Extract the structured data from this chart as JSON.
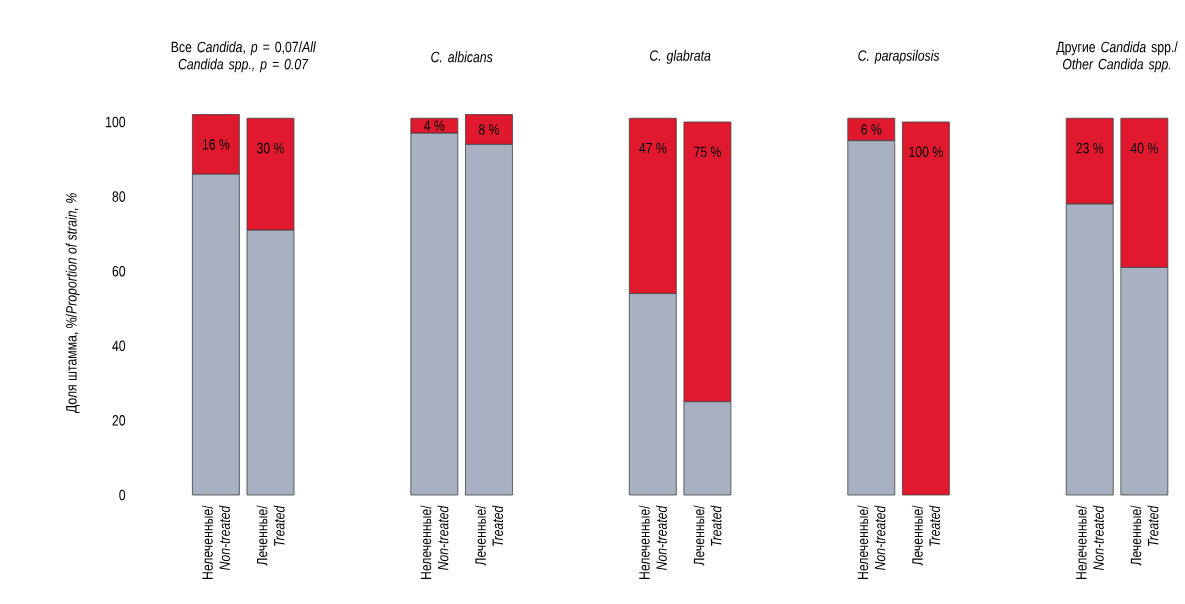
{
  "chart_data": {
    "type": "bar",
    "stacked": true,
    "ylabel": "Доля штамма, %/*Proportion of strain, %*",
    "categories": [
      "Нелеченные/ *Non-treated*",
      "Леченные/ *Treated*",
      null,
      null,
      "Нелеченные/ *Non-treated*",
      "Леченные/ *Treated*",
      null,
      null,
      "Нелеченные/ *Non-treated*",
      "Леченные/ *Treated*",
      null,
      null,
      "Нелеченные/ *Non-treated*",
      "Леченные/ *Treated*",
      null,
      null,
      "Нелеченные/ *Non-treated*",
      "Леченные/ *Treated*"
    ],
    "series": [
      {
        "color": "#a8b1c2",
        "values": [
          86,
          71,
          null,
          null,
          97,
          94,
          null,
          null,
          54,
          25,
          null,
          null,
          95,
          0,
          null,
          null,
          78,
          61
        ]
      },
      {
        "color": "#e0192f",
        "values": [
          16,
          30,
          null,
          null,
          4,
          8,
          null,
          null,
          47,
          75,
          null,
          null,
          6,
          100,
          null,
          null,
          23,
          40
        ],
        "value_labels": [
          "16 %",
          "30 %",
          null,
          null,
          "4 %",
          "8 %",
          null,
          null,
          "47 %",
          "75 %",
          null,
          null,
          "6 %",
          "100 %",
          null,
          null,
          "23 %",
          "40 %"
        ]
      }
    ],
    "ylim": [
      0,
      103
    ],
    "yticks": [
      0,
      20,
      40,
      60,
      80,
      100
    ],
    "annotations": [
      "Все *Candida*, *p* = 0,07/*All Candida spp., p = 0.07*",
      "*C. albicans*",
      "*C. glabrata*",
      "*C. parapsilosis*",
      "Другие *Candida* spp./ *Other Candida spp.*"
    ]
  }
}
